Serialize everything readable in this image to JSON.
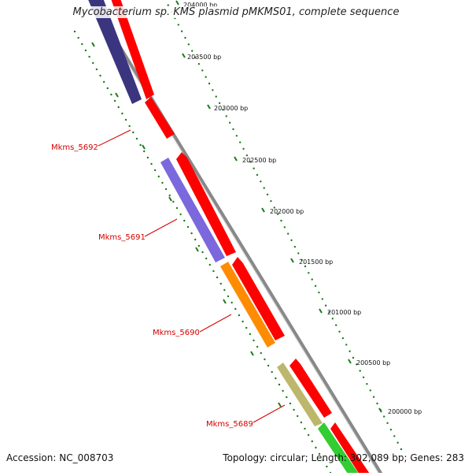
{
  "title": "Mycobacterium sp. KMS plasmid pMKMS01, complete sequence",
  "footer": {
    "accession": "Accession: NC_008703",
    "summary": "Topology: circular; Length: 302,089 bp; Genes: 283"
  },
  "bp_ticks": [
    "204000 bp",
    "203500 bp",
    "203000 bp",
    "202500 bp",
    "202000 bp",
    "201500 bp",
    "201000 bp",
    "200500 bp",
    "200000 bp"
  ],
  "genes": [
    {
      "label": "Mkms_5692",
      "color": "#d40000"
    },
    {
      "label": "Mkms_5691",
      "color": "#d40000"
    },
    {
      "label": "Mkms_5690",
      "color": "#d40000"
    },
    {
      "label": "Mkms_5689",
      "color": "#d40000"
    }
  ],
  "colors": {
    "backbone": "#888888",
    "tick_dots": "#1a7a1a",
    "forward": "#ff0000",
    "navy": "#3b3580",
    "violet": "#7b68dd",
    "orange": "#ff8c00",
    "khaki": "#bdb76b",
    "green": "#32cd32"
  }
}
